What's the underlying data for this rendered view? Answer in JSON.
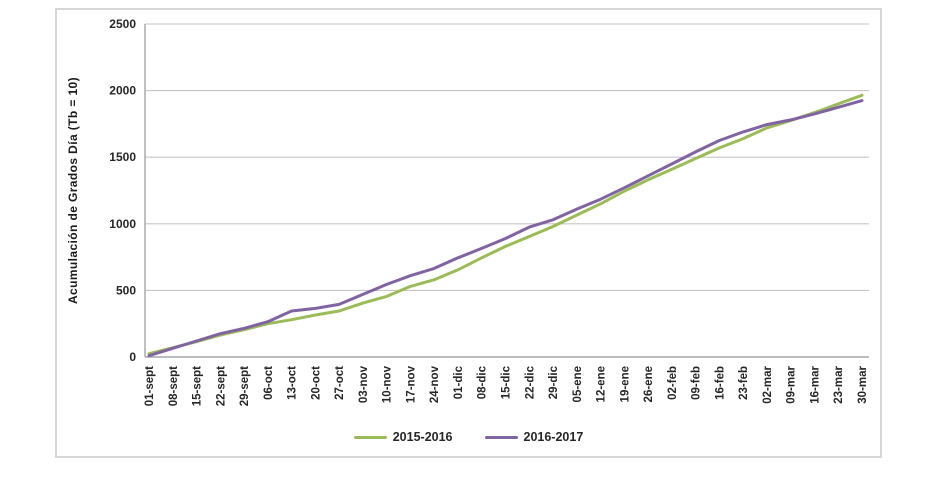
{
  "chart_data": {
    "type": "line",
    "title": "",
    "xlabel": "",
    "ylabel": "Acumulación de Grados Día (Tb = 10)",
    "ylim": [
      0,
      2500
    ],
    "yticks": [
      0,
      500,
      1000,
      1500,
      2000,
      2500
    ],
    "grid": "horizontal",
    "legend_position": "bottom",
    "categories": [
      "01-sept",
      "08-sept",
      "15-sept",
      "22-sept",
      "29-sept",
      "06-oct",
      "13-oct",
      "20-oct",
      "27-oct",
      "03-nov",
      "10-nov",
      "17-nov",
      "24-nov",
      "01-dic",
      "08-dic",
      "15-dic",
      "22-dic",
      "29-dic",
      "05-ene",
      "12-ene",
      "19-ene",
      "26-ene",
      "02-feb",
      "09-feb",
      "16-feb",
      "23-feb",
      "02-mar",
      "09-mar",
      "16-mar",
      "23-mar",
      "30-mar"
    ],
    "series": [
      {
        "name": "2015-2016",
        "color": "#9BBB59",
        "values": [
          25,
          70,
          115,
          165,
          205,
          250,
          280,
          315,
          345,
          405,
          455,
          530,
          580,
          655,
          745,
          830,
          905,
          980,
          1065,
          1150,
          1245,
          1330,
          1410,
          1490,
          1570,
          1640,
          1720,
          1775,
          1835,
          1900,
          1965
        ]
      },
      {
        "name": "2016-2017",
        "color": "#8064A2",
        "values": [
          10,
          65,
          120,
          175,
          215,
          265,
          345,
          365,
          395,
          470,
          545,
          610,
          665,
          745,
          815,
          890,
          975,
          1030,
          1110,
          1185,
          1270,
          1360,
          1450,
          1540,
          1625,
          1690,
          1745,
          1780,
          1825,
          1875,
          1925
        ]
      }
    ]
  },
  "colors": {
    "gridline": "#C6C6C6",
    "axis_line": "#A6A6A6",
    "text": "#262626",
    "chart_border": "#D6D6D6",
    "background": "#FFFFFF"
  }
}
